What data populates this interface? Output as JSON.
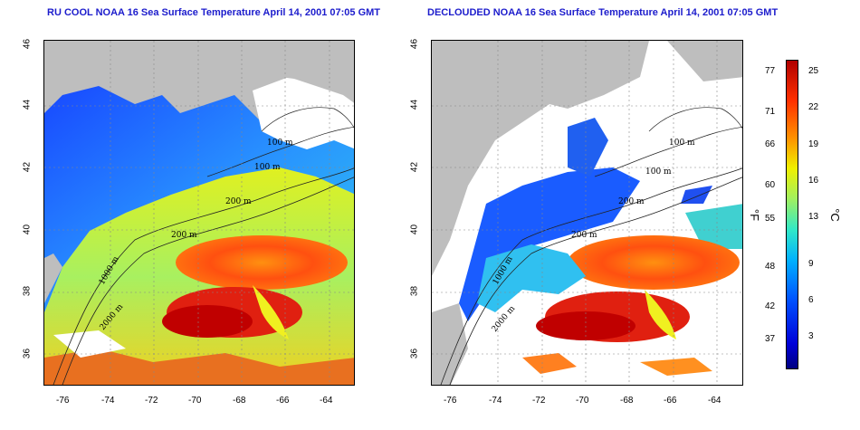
{
  "left_panel": {
    "title": "RU COOL NOAA 16 Sea Surface Temperature April 14, 2001 07:05 GMT"
  },
  "right_panel": {
    "title": "DECLOUDED NOAA 16 Sea Surface Temperature April 14, 2001 07:05 GMT"
  },
  "axes": {
    "x_ticks": [
      "-76",
      "-74",
      "-72",
      "-70",
      "-68",
      "-66",
      "-64"
    ],
    "y_ticks": [
      "46",
      "44",
      "42",
      "40",
      "38",
      "36"
    ]
  },
  "contours": {
    "labels_left": [
      "100 m",
      "100 m",
      "200 m",
      "200 m",
      "1000 m",
      "2000 m"
    ],
    "labels_right": [
      "100 m",
      "100 m",
      "200 m",
      "200 m",
      "1000 m",
      "2000 m"
    ]
  },
  "colorbar": {
    "fahrenheit": [
      "77",
      "71",
      "66",
      "60",
      "55",
      "48",
      "42",
      "37"
    ],
    "celsius": [
      "25",
      "22",
      "19",
      "16",
      "13",
      "9",
      "6",
      "3"
    ],
    "unit_f": "°F",
    "unit_c": "°C"
  },
  "colors": {
    "land": "#bebebe",
    "title": "#1c1ccc"
  }
}
